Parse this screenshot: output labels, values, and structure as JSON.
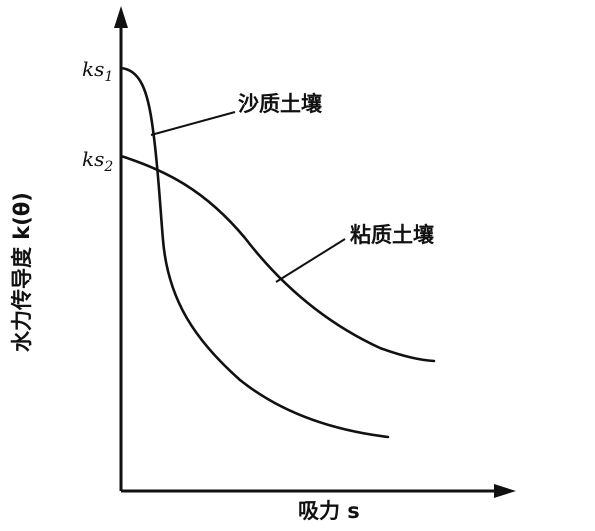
{
  "chart_data": {
    "type": "line",
    "xlabel": "吸力 s",
    "ylabel": "水力传导度 k(θ)",
    "y_tick_labels": [
      {
        "main": "ks",
        "sub": "1"
      },
      {
        "main": "ks",
        "sub": "2"
      }
    ],
    "series": [
      {
        "name": "沙质土壤",
        "label": "沙质土壤"
      },
      {
        "name": "粘质土壤",
        "label": "粘质土壤"
      }
    ],
    "grid": false,
    "legend": "inline annotations",
    "colors": {
      "line": "#111111",
      "axis": "#111111"
    }
  }
}
